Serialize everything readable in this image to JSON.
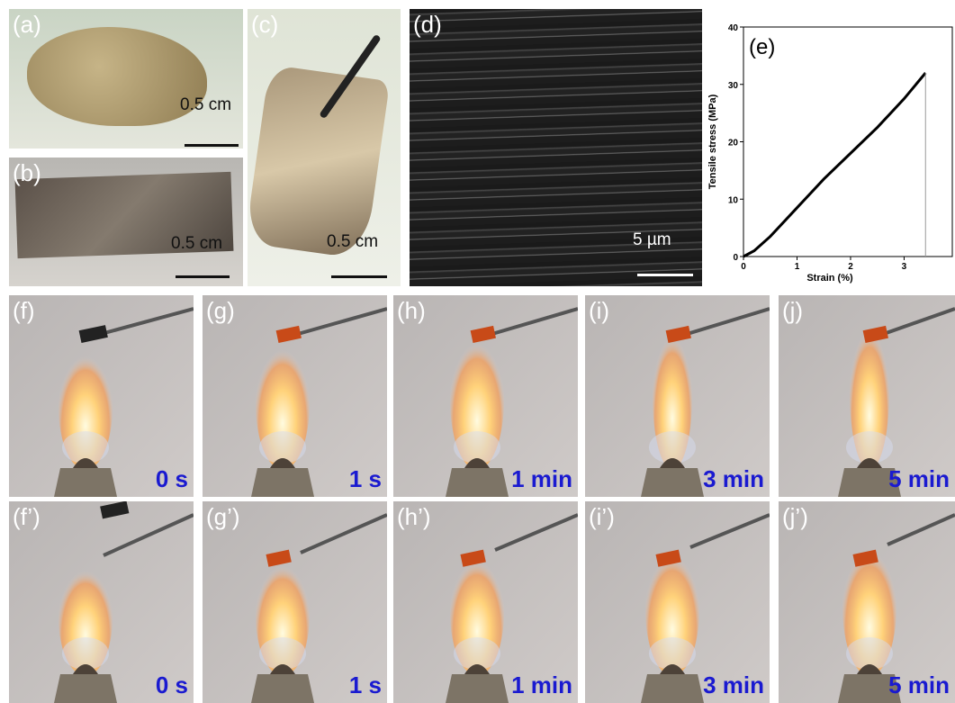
{
  "photos": [
    {
      "label": "(a)",
      "scale": "0.5 cm"
    },
    {
      "label": "(b)",
      "scale": "0.5 cm"
    },
    {
      "label": "(c)",
      "scale": "0.5 cm"
    },
    {
      "label": "(d)",
      "scale": "5 µm"
    }
  ],
  "flame_rows": [
    {
      "labels": [
        "(f)",
        "(g)",
        "(h)",
        "(i)",
        "(j)"
      ],
      "times": [
        "0 s",
        "1 s",
        "1 min",
        "3 min",
        "5 min"
      ]
    },
    {
      "labels": [
        "(f’)",
        "(g’)",
        "(h’)",
        "(i’)",
        "(j’)"
      ],
      "times": [
        "0 s",
        "1 s",
        "1 min",
        "3 min",
        "5 min"
      ]
    }
  ],
  "chart_data": {
    "type": "line",
    "title": "(e)",
    "x_label": "Strain (%)",
    "y_label": "Tensile stress (MPa)",
    "x": [
      0,
      0.2,
      0.5,
      1,
      1.5,
      2,
      2.5,
      3,
      3.4
    ],
    "values": [
      0,
      1,
      3.5,
      8.5,
      13.5,
      18,
      22.5,
      27.5,
      32
    ],
    "color": "#000000",
    "xlim": [
      0,
      3.9
    ],
    "ylim": [
      0,
      40
    ],
    "xticks": [
      0,
      1,
      2,
      3
    ],
    "yticks": [
      0,
      10,
      20,
      30,
      40
    ]
  }
}
